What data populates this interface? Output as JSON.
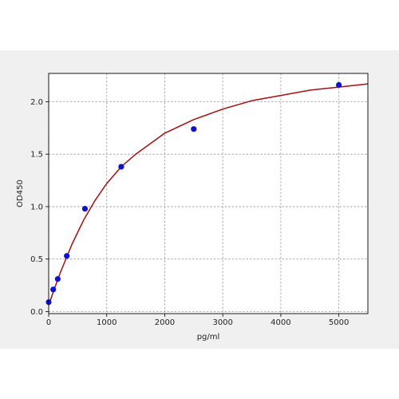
{
  "chart_data": {
    "type": "scatter",
    "title": "",
    "xlabel": "pg/ml",
    "ylabel": "OD450",
    "xlim": [
      0,
      5500
    ],
    "ylim": [
      -0.02,
      2.27
    ],
    "x_ticks": [
      0,
      1000,
      2000,
      3000,
      4000,
      5000
    ],
    "y_ticks": [
      0.0,
      0.5,
      1.0,
      1.5,
      2.0
    ],
    "x_tick_labels": [
      "0",
      "1000",
      "2000",
      "3000",
      "4000",
      "5000"
    ],
    "y_tick_labels": [
      "0.0",
      "0.5",
      "1.0",
      "1.5",
      "2.0"
    ],
    "grid": true,
    "legend": "none",
    "series": [
      {
        "kind": "points",
        "x": [
          0,
          78,
          156,
          312,
          625,
          1250,
          2500,
          5000
        ],
        "y": [
          0.09,
          0.21,
          0.31,
          0.53,
          0.98,
          1.38,
          1.74,
          2.16
        ],
        "color": "#1010d0"
      },
      {
        "kind": "fitted-curve",
        "x": [
          0,
          100,
          200,
          400,
          600,
          800,
          1000,
          1250,
          1500,
          2000,
          2500,
          3000,
          3500,
          4000,
          4500,
          5000,
          5500
        ],
        "y": [
          0.06,
          0.22,
          0.37,
          0.64,
          0.87,
          1.06,
          1.22,
          1.38,
          1.5,
          1.7,
          1.83,
          1.93,
          2.01,
          2.06,
          2.11,
          2.14,
          2.17
        ],
        "color": "#a01010"
      }
    ],
    "plot_background": "#ffffff",
    "figure_background": "#f0f0f0",
    "grid_color": "#999999"
  }
}
